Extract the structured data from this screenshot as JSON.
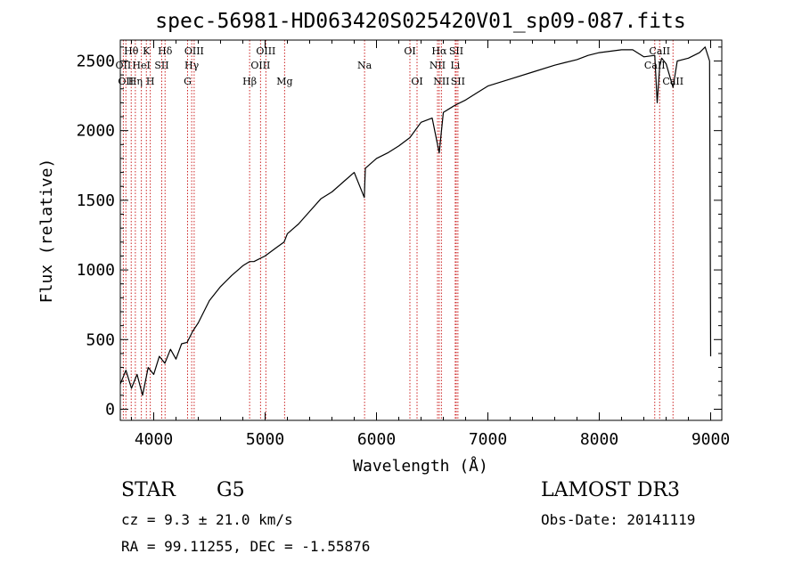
{
  "chart_data": {
    "type": "line",
    "title": "spec-56981-HD063420S025420V01_sp09-087.fits",
    "xlabel": "Wavelength (Å)",
    "ylabel": "Flux (relative)",
    "xlim": [
      3700,
      9100
    ],
    "ylim": [
      -80,
      2650
    ],
    "xticks": [
      4000,
      5000,
      6000,
      7000,
      8000,
      9000
    ],
    "yticks": [
      0,
      500,
      1000,
      1500,
      2000,
      2500
    ],
    "xticklabels": [
      "4000",
      "5000",
      "6000",
      "7000",
      "8000",
      "9000"
    ],
    "yticklabels": [
      "0",
      "500",
      "1000",
      "1500",
      "2000",
      "2500"
    ],
    "grid": false,
    "series": [
      {
        "name": "flux",
        "x": [
          3700,
          3750,
          3800,
          3850,
          3900,
          3950,
          4000,
          4050,
          4100,
          4150,
          4200,
          4250,
          4300,
          4350,
          4400,
          4500,
          4600,
          4700,
          4800,
          4860,
          4900,
          5000,
          5100,
          5170,
          5200,
          5300,
          5400,
          5500,
          5600,
          5700,
          5800,
          5890,
          5900,
          6000,
          6100,
          6200,
          6300,
          6400,
          6500,
          6563,
          6600,
          6700,
          6800,
          6900,
          7000,
          7200,
          7400,
          7600,
          7700,
          7800,
          7900,
          8000,
          8100,
          8200,
          8300,
          8400,
          8498,
          8520,
          8542,
          8560,
          8600,
          8662,
          8700,
          8800,
          8900,
          8950,
          8990,
          9000
        ],
        "y": [
          180,
          280,
          150,
          250,
          100,
          300,
          250,
          380,
          330,
          430,
          360,
          470,
          480,
          560,
          620,
          780,
          880,
          960,
          1030,
          1060,
          1060,
          1100,
          1160,
          1200,
          1260,
          1330,
          1420,
          1510,
          1560,
          1630,
          1700,
          1520,
          1730,
          1800,
          1840,
          1890,
          1950,
          2060,
          2090,
          1840,
          2130,
          2180,
          2220,
          2270,
          2320,
          2370,
          2420,
          2470,
          2490,
          2510,
          2540,
          2560,
          2570,
          2580,
          2580,
          2530,
          2540,
          2200,
          2460,
          2520,
          2480,
          2310,
          2500,
          2520,
          2560,
          2600,
          2500,
          380
        ]
      }
    ],
    "lines": [
      {
        "wavelength": 3727,
        "label": "OII",
        "row": 2
      },
      {
        "wavelength": 3750,
        "label": "OII",
        "row": 3
      },
      {
        "wavelength": 3798,
        "label": "Hθ",
        "row": 1
      },
      {
        "wavelength": 3835,
        "label": "Hη",
        "row": 3
      },
      {
        "wavelength": 3889,
        "label": "HeI",
        "row": 2
      },
      {
        "wavelength": 3934,
        "label": "K",
        "row": 1
      },
      {
        "wavelength": 3969,
        "label": "H",
        "row": 3
      },
      {
        "wavelength": 4072,
        "label": "SII",
        "row": 2
      },
      {
        "wavelength": 4102,
        "label": "Hδ",
        "row": 1
      },
      {
        "wavelength": 4304,
        "label": "G",
        "row": 3
      },
      {
        "wavelength": 4341,
        "label": "Hγ",
        "row": 2
      },
      {
        "wavelength": 4363,
        "label": "OIII",
        "row": 1
      },
      {
        "wavelength": 4861,
        "label": "Hβ",
        "row": 3
      },
      {
        "wavelength": 4959,
        "label": "OIII",
        "row": 2
      },
      {
        "wavelength": 5007,
        "label": "OIII",
        "row": 1
      },
      {
        "wavelength": 5175,
        "label": "Mg",
        "row": 3
      },
      {
        "wavelength": 5893,
        "label": "Na",
        "row": 2
      },
      {
        "wavelength": 6300,
        "label": "OI",
        "row": 1
      },
      {
        "wavelength": 6364,
        "label": "OI",
        "row": 3
      },
      {
        "wavelength": 6548,
        "label": "NII",
        "row": 2
      },
      {
        "wavelength": 6563,
        "label": "Hα",
        "row": 1
      },
      {
        "wavelength": 6583,
        "label": "NII",
        "row": 3
      },
      {
        "wavelength": 6707,
        "label": "Li",
        "row": 2
      },
      {
        "wavelength": 6716,
        "label": "SII",
        "row": 1
      },
      {
        "wavelength": 6731,
        "label": "SII",
        "row": 3
      },
      {
        "wavelength": 8498,
        "label": "CaII",
        "row": 2
      },
      {
        "wavelength": 8542,
        "label": "CaII",
        "row": 1
      },
      {
        "wavelength": 8662,
        "label": "CaII",
        "row": 3
      }
    ]
  },
  "info": {
    "obj_class": "STAR",
    "sub_class": "G5",
    "survey": "LAMOST DR3",
    "redshift": "cz = 9.3 ± 21.0 km/s",
    "obs_date": "Obs-Date: 20141119",
    "coords": "RA =  99.11255, DEC =  -1.55876"
  },
  "colors": {
    "line_marker": "#cc2222",
    "spectrum": "#000000",
    "axis": "#000000"
  }
}
